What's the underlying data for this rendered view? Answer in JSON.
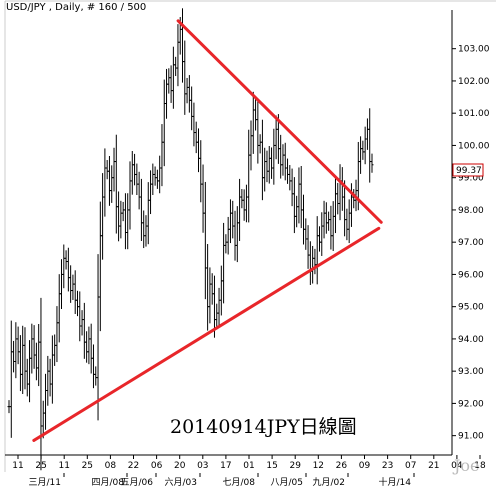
{
  "header": {
    "symbol": "USD/JPY",
    "separator": " , ",
    "period": "Daily",
    "count_text": ", # 160 / 500"
  },
  "annotation": "20140914JPY日線圖",
  "watermark": "Joe",
  "last_price_label": "99.37",
  "colors": {
    "bars": "#000000",
    "trendline": "#e8262a",
    "price_box": "#cc0000",
    "axis": "#000000",
    "background": "#ffffff"
  },
  "chart_data": {
    "type": "ohlc",
    "title": "USD/JPY , Daily, # 160 / 500",
    "ylim": [
      90.4,
      104.2
    ],
    "y_ticks": [
      91,
      92,
      93,
      94,
      95,
      96,
      97,
      98,
      99,
      100,
      101,
      102,
      103
    ],
    "y_tick_labels": [
      "91.00",
      "92.00",
      "93.00",
      "94.00",
      "95.00",
      "96.00",
      "97.00",
      "98.00",
      "99.00",
      "100.00",
      "101.00",
      "102.00",
      "103.00"
    ],
    "x_day_labels": [
      "11",
      "25",
      "11",
      "25",
      "08",
      "22",
      "06",
      "20",
      "03",
      "17",
      "01",
      "15",
      "29",
      "12",
      "26",
      "09",
      "23",
      "07",
      "21",
      "04",
      "18"
    ],
    "x_month_labels": [
      "三月/11",
      "四月/08",
      "五月/06",
      "六月/03",
      "七月/08",
      "八月/05",
      "九月/02",
      "十月/14"
    ],
    "series": [
      {
        "closes": [
          91.9,
          93.6,
          93.3,
          94.0,
          93.6,
          92.9,
          93.8,
          93.0,
          92.6,
          93.4,
          94.0,
          93.5,
          93.1,
          93.9,
          91.3,
          91.7,
          92.4,
          93.0,
          92.6,
          93.5,
          93.8,
          94.5,
          95.4,
          96.0,
          96.5,
          96.4,
          95.9,
          95.5,
          95.7,
          95.2,
          95.0,
          94.4,
          94.6,
          93.9,
          93.6,
          94.0,
          93.4,
          92.9,
          92.8,
          95.3,
          97.2,
          98.4,
          99.3,
          99.2,
          98.6,
          99.0,
          99.5,
          98.1,
          97.5,
          97.9,
          98.0,
          97.3,
          98.0,
          98.9,
          99.4,
          99.1,
          98.8,
          98.4,
          97.6,
          97.2,
          97.5,
          98.3,
          98.8,
          99.1,
          99.0,
          98.9,
          99.3,
          100.1,
          101.3,
          101.9,
          102.1,
          101.7,
          102.5,
          102.4,
          103.2,
          103.6,
          102.6,
          101.6,
          101.8,
          101.4,
          100.9,
          100.4,
          100.1,
          99.6,
          98.8,
          97.9,
          96.2,
          95.0,
          95.7,
          95.4,
          94.6,
          94.8,
          95.2,
          95.8,
          96.9,
          97.0,
          97.4,
          97.9,
          97.5,
          96.9,
          97.6,
          98.4,
          98.3,
          98.0,
          98.4,
          99.7,
          100.3,
          101.1,
          100.8,
          100.0,
          100.1,
          99.0,
          99.5,
          99.2,
          99.6,
          99.3,
          100.0,
          100.5,
          99.9,
          99.4,
          99.7,
          99.3,
          99.1,
          98.9,
          98.5,
          97.8,
          98.1,
          98.8,
          98.0,
          97.4,
          97.1,
          96.6,
          96.1,
          96.5,
          96.3,
          97.2,
          97.0,
          97.5,
          97.9,
          97.6,
          97.7,
          97.2,
          97.8,
          98.5,
          98.2,
          98.9,
          98.4,
          97.7,
          97.4,
          97.9,
          98.4,
          98.3,
          98.6,
          99.5,
          99.9,
          99.8,
          100.2,
          100.5,
          99.5,
          99.4
        ]
      }
    ],
    "trendlines": [
      {
        "from": {
          "bar": 75,
          "value": 103.8
        },
        "to": {
          "bar": 159,
          "value": 97.9
        }
      },
      {
        "from": {
          "bar": 12,
          "value": 90.9
        },
        "to": {
          "bar": 159,
          "value": 97.3
        }
      }
    ],
    "xlabel": "",
    "ylabel": "",
    "grid": false,
    "legend": "none"
  }
}
